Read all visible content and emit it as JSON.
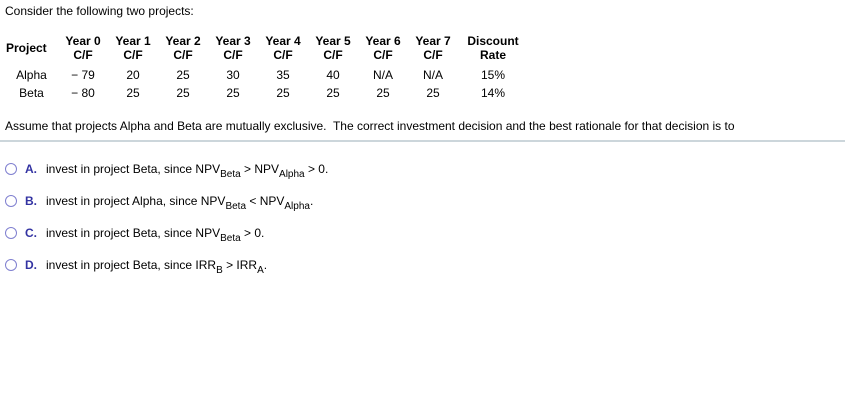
{
  "question": {
    "intro": "Consider the following two projects:",
    "assumption": "Assume that projects Alpha and Beta are mutually exclusive.  The correct investment decision and the best rationale for that decision is to"
  },
  "table": {
    "headers": [
      {
        "l1": "Project",
        "l2": ""
      },
      {
        "l1": "Year 0",
        "l2": "C/F"
      },
      {
        "l1": "Year 1",
        "l2": "C/F"
      },
      {
        "l1": "Year 2",
        "l2": "C/F"
      },
      {
        "l1": "Year 3",
        "l2": "C/F"
      },
      {
        "l1": "Year 4",
        "l2": "C/F"
      },
      {
        "l1": "Year 5",
        "l2": "C/F"
      },
      {
        "l1": "Year 6",
        "l2": "C/F"
      },
      {
        "l1": "Year 7",
        "l2": "C/F"
      },
      {
        "l1": "Discount",
        "l2": "Rate"
      }
    ],
    "rows": [
      {
        "cells": [
          "Alpha",
          "− 79",
          "20",
          "25",
          "30",
          "35",
          "40",
          "N/A",
          "N/A",
          "15%"
        ]
      },
      {
        "cells": [
          "Beta",
          "− 80",
          "25",
          "25",
          "25",
          "25",
          "25",
          "25",
          "25",
          "14%"
        ]
      }
    ]
  },
  "options": [
    {
      "letter": "A.",
      "pre": "invest in project Beta, since NPV",
      "sub1": "Beta",
      "mid": " > NPV",
      "sub2": "Alpha",
      "end": " > 0."
    },
    {
      "letter": "B.",
      "pre": "invest in project Alpha, since NPV",
      "sub1": "Beta",
      "mid": " < NPV",
      "sub2": "Alpha",
      "end": "."
    },
    {
      "letter": "C.",
      "pre": "invest in project Beta, since NPV",
      "sub1": "Beta",
      "mid": " > 0.",
      "sub2": "",
      "end": ""
    },
    {
      "letter": "D.",
      "pre": "invest in project Beta, since IRR",
      "sub1": "B",
      "mid": " > IRR",
      "sub2": "A",
      "end": "."
    }
  ],
  "colors": {
    "text": "#000000",
    "accent": "#3333a2",
    "radio_border": "#8080d0",
    "divider": "#ccd6db"
  }
}
